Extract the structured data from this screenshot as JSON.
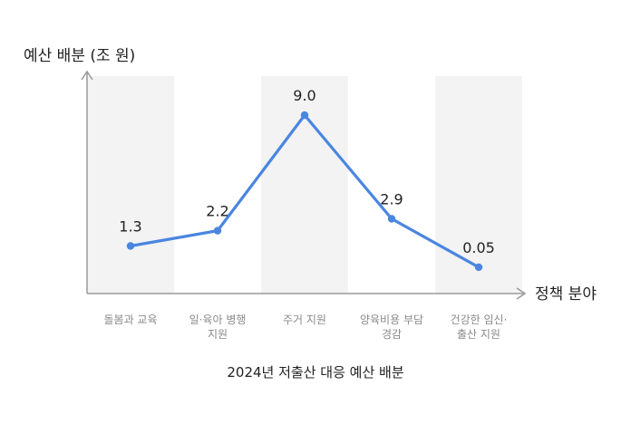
{
  "chart_data": {
    "type": "line",
    "title": "2024년 저출산 대응 예산 배분",
    "xlabel": "정책 분야",
    "ylabel": "예산 배분 (조 원)",
    "categories": [
      [
        "돌봄과 교육"
      ],
      [
        "일·육아 병행",
        "지원"
      ],
      [
        "주거 지원"
      ],
      [
        "양육비용 부담",
        "경감"
      ],
      [
        "건강한 임신·",
        "출산 지원"
      ]
    ],
    "series": [
      {
        "values": [
          1.3,
          2.2,
          9.0,
          2.9,
          0.05
        ],
        "labels": [
          "1.3",
          "2.2",
          "9.0",
          "2.9",
          "0.05"
        ]
      }
    ],
    "ylim": [
      -1.5,
      11.3
    ],
    "grid": false,
    "line_color": "#4a86e0",
    "band_color": "#f3f3f3",
    "axis_color": "#9a9a9a"
  }
}
